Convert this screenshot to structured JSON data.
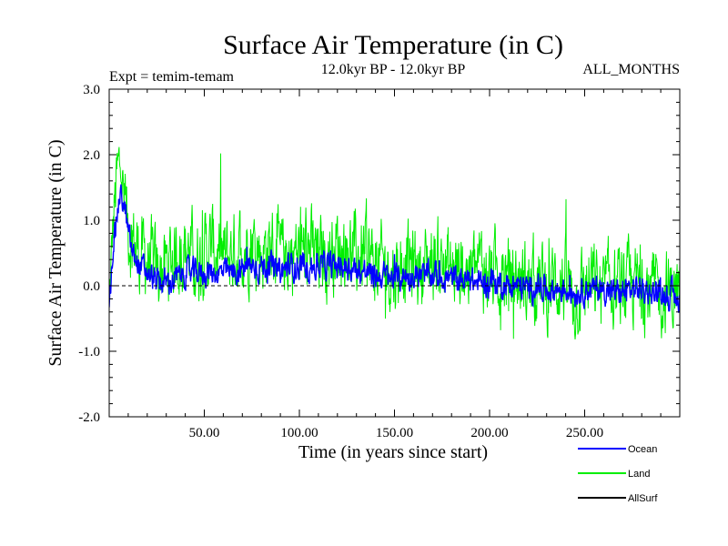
{
  "chart_data": {
    "type": "line",
    "title": "Surface Air Temperature (in C)",
    "subtitle_left": "Expt = temim-temam",
    "subtitle_center": "12.0kyr BP - 12.0kyr BP",
    "subtitle_right": "ALL_MONTHS",
    "xlabel": "Time (in years since start)",
    "ylabel": "Surface Air Temperature (in C)",
    "xlim": [
      0,
      300
    ],
    "ylim": [
      -2.0,
      3.0
    ],
    "x_ticks": [
      50,
      100,
      150,
      200,
      250
    ],
    "x_tick_labels": [
      "50.00",
      "100.00",
      "150.00",
      "200.00",
      "250.00"
    ],
    "y_ticks": [
      -2.0,
      -1.0,
      0.0,
      1.0,
      2.0,
      3.0
    ],
    "y_tick_labels": [
      "-2.0",
      "-1.0",
      "0.0",
      "1.0",
      "2.0",
      "3.0"
    ],
    "reference_line": 0.0,
    "series": [
      {
        "name": "Land",
        "color": "#00ee00",
        "x": [
          0,
          2,
          4,
          6,
          8,
          10,
          12,
          14,
          16,
          20,
          25,
          30,
          35,
          40,
          45,
          50,
          55,
          60,
          65,
          70,
          75,
          80,
          85,
          90,
          95,
          100,
          105,
          110,
          115,
          120,
          125,
          130,
          135,
          140,
          145,
          150,
          155,
          160,
          165,
          170,
          175,
          180,
          185,
          190,
          195,
          200,
          205,
          210,
          215,
          220,
          225,
          230,
          235,
          240,
          245,
          250,
          255,
          260,
          265,
          270,
          275,
          280,
          285,
          290,
          295,
          300
        ],
        "values": [
          -0.3,
          0.9,
          1.6,
          1.9,
          1.2,
          0.9,
          0.7,
          0.6,
          0.5,
          0.4,
          0.2,
          0.3,
          0.5,
          0.6,
          0.4,
          0.5,
          0.6,
          0.4,
          0.5,
          0.6,
          0.7,
          0.5,
          0.6,
          0.4,
          0.5,
          0.5,
          0.6,
          0.4,
          0.5,
          0.6,
          0.6,
          0.4,
          0.5,
          0.3,
          0.3,
          0.2,
          0.4,
          0.3,
          0.3,
          0.4,
          0.4,
          0.2,
          0.3,
          0.2,
          0.3,
          0.2,
          0.2,
          0.1,
          0.1,
          0.0,
          0.1,
          -0.1,
          0.1,
          0.0,
          -0.2,
          0.0,
          0.0,
          -0.1,
          0.0,
          -0.1,
          0.0,
          0.0,
          -0.1,
          -0.1,
          -0.1,
          -0.1
        ],
        "spread": [
          0.3,
          0.5,
          0.6,
          0.5,
          0.6,
          0.6,
          0.6,
          0.6,
          0.6,
          0.6,
          0.6,
          0.6,
          0.6,
          0.6,
          0.6,
          0.6,
          0.6,
          0.6,
          0.6,
          0.6,
          0.6,
          0.6,
          0.6,
          0.6,
          0.6,
          0.6,
          0.6,
          0.6,
          0.6,
          0.6,
          0.6,
          0.6,
          0.6,
          0.6,
          0.6,
          0.6,
          0.6,
          0.6,
          0.6,
          0.6,
          0.6,
          0.6,
          0.6,
          0.6,
          0.6,
          0.6,
          0.6,
          0.6,
          0.6,
          0.6,
          0.6,
          0.6,
          0.6,
          0.6,
          0.6,
          0.6,
          0.6,
          0.6,
          0.6,
          0.6,
          0.6,
          0.6,
          0.6,
          0.6,
          0.6,
          0.6
        ]
      },
      {
        "name": "Ocean",
        "color": "#0000ff",
        "x": [
          0,
          2,
          4,
          6,
          8,
          10,
          12,
          14,
          16,
          20,
          25,
          30,
          35,
          40,
          45,
          50,
          55,
          60,
          65,
          70,
          75,
          80,
          85,
          90,
          95,
          100,
          105,
          110,
          115,
          120,
          125,
          130,
          135,
          140,
          145,
          150,
          155,
          160,
          165,
          170,
          175,
          180,
          185,
          190,
          195,
          200,
          205,
          210,
          215,
          220,
          225,
          230,
          235,
          240,
          245,
          250,
          255,
          260,
          265,
          270,
          275,
          280,
          285,
          290,
          295,
          300
        ],
        "values": [
          -0.4,
          0.6,
          1.1,
          1.4,
          1.2,
          0.8,
          0.5,
          0.4,
          0.3,
          0.2,
          0.05,
          0.05,
          0.1,
          0.2,
          0.2,
          0.2,
          0.2,
          0.2,
          0.2,
          0.25,
          0.3,
          0.3,
          0.3,
          0.2,
          0.3,
          0.3,
          0.3,
          0.3,
          0.3,
          0.3,
          0.3,
          0.25,
          0.2,
          0.15,
          0.15,
          0.1,
          0.15,
          0.15,
          0.15,
          0.15,
          0.15,
          0.1,
          0.1,
          0.05,
          0.05,
          0.05,
          0.05,
          0.0,
          0.0,
          -0.05,
          0.0,
          -0.05,
          -0.05,
          -0.05,
          -0.1,
          -0.05,
          -0.05,
          -0.05,
          -0.1,
          -0.1,
          -0.05,
          -0.05,
          -0.1,
          -0.1,
          -0.15,
          -0.2
        ],
        "spread": [
          0.1,
          0.2,
          0.2,
          0.15,
          0.2,
          0.2,
          0.2,
          0.2,
          0.2,
          0.2,
          0.2,
          0.2,
          0.2,
          0.2,
          0.2,
          0.2,
          0.2,
          0.2,
          0.2,
          0.2,
          0.2,
          0.2,
          0.2,
          0.2,
          0.2,
          0.2,
          0.2,
          0.2,
          0.2,
          0.2,
          0.2,
          0.2,
          0.2,
          0.2,
          0.2,
          0.2,
          0.2,
          0.2,
          0.2,
          0.2,
          0.2,
          0.2,
          0.2,
          0.2,
          0.2,
          0.2,
          0.2,
          0.2,
          0.2,
          0.2,
          0.2,
          0.2,
          0.2,
          0.2,
          0.2,
          0.2,
          0.2,
          0.2,
          0.2,
          0.2,
          0.2,
          0.2,
          0.2,
          0.2,
          0.2,
          0.2
        ]
      }
    ],
    "legend": [
      {
        "label": "Ocean",
        "color": "#0000ff"
      },
      {
        "label": "Land",
        "color": "#00ee00"
      },
      {
        "label": "AllSurf",
        "color": "#000000"
      }
    ],
    "legend_position": "bottom-right"
  }
}
